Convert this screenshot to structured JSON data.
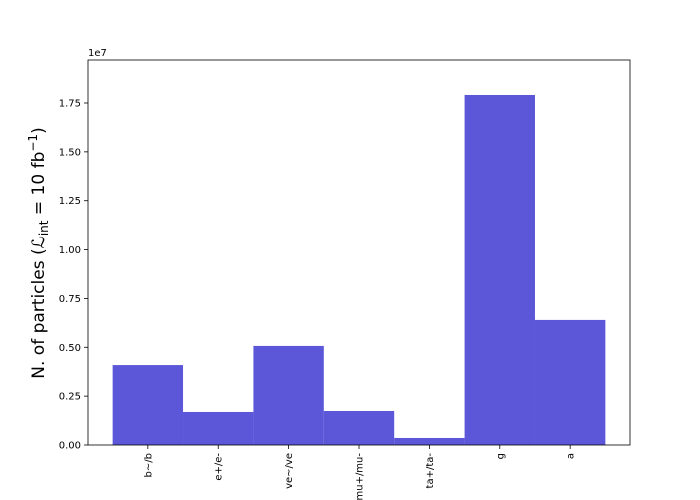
{
  "chart_data": {
    "type": "bar",
    "categories": [
      "b~/b",
      "e+/e-",
      "ve~/ve",
      "mu+/mu-",
      "ta+/ta-",
      "g",
      "a"
    ],
    "values": [
      4090000,
      1690000,
      5070000,
      1740000,
      360000,
      17910000,
      6400000
    ],
    "color": "#5b57d8",
    "ylabel": [
      "N.  of particles (",
      "ℒ",
      "int",
      " = 10 fb",
      "−1",
      ")"
    ],
    "y_offset_label": "1e7",
    "ylim": [
      0,
      19700000
    ],
    "yticks": [
      {
        "value": 0,
        "label": "0.00"
      },
      {
        "value": 2500000,
        "label": "0.25"
      },
      {
        "value": 5000000,
        "label": "0.50"
      },
      {
        "value": 7500000,
        "label": "0.75"
      },
      {
        "value": 10000000,
        "label": "1.00"
      },
      {
        "value": 12500000,
        "label": "1.25"
      },
      {
        "value": 15000000,
        "label": "1.50"
      },
      {
        "value": 17500000,
        "label": "1.75"
      }
    ],
    "grid": false
  }
}
